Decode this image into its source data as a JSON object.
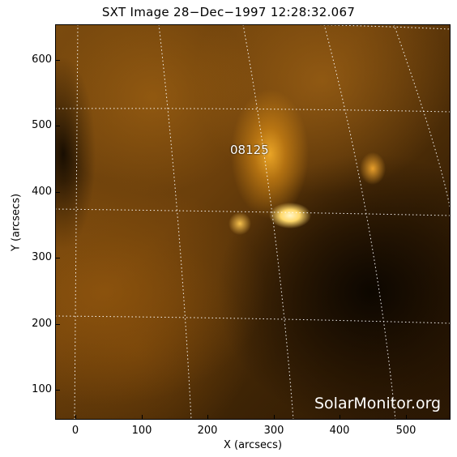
{
  "title": "SXT Image 28−Dec−1997 12:28:32.067",
  "region_label": "08125",
  "watermark": "SolarMonitor.org",
  "x_axis": {
    "label": "X (arcsecs)",
    "ticks": [
      "0",
      "100",
      "200",
      "300",
      "400",
      "500"
    ]
  },
  "y_axis": {
    "label": "Y (arcsecs)",
    "ticks": [
      "100",
      "200",
      "300",
      "400",
      "500",
      "600"
    ]
  },
  "colors": {
    "colormap": "solar-orange",
    "grid": "#ffffff"
  }
}
